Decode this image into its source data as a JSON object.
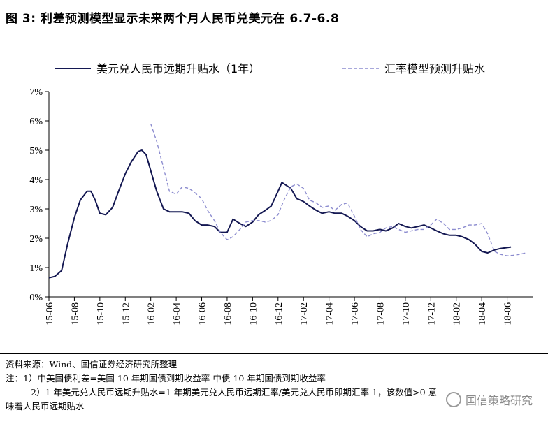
{
  "figure_title": "图 3: 利差预测模型显示未来两个月人民币兑美元在 6.7-6.8",
  "notes": [
    "资料来源：Wind、国信证券经济研究所整理",
    "注：1）中美国债利差=美国 10 年期国债到期收益率-中债 10 年期国债到期收益率",
    "2）1 年美元兑人民币远期升贴水=1 年期美元兑人民币远期汇率/美元兑人民币即期汇率-1，该数值>0 意",
    "味着人民币远期贴水"
  ],
  "watermark": "国信策略研究",
  "colors": {
    "series1": "#141852",
    "series2": "#8c8ccf",
    "axis": "#000000"
  },
  "chart_data": {
    "type": "line",
    "title": "",
    "xlabel": "",
    "ylabel": "",
    "ylim": [
      0,
      7
    ],
    "yticks": [
      "0%",
      "1%",
      "2%",
      "3%",
      "4%",
      "5%",
      "6%",
      "7%"
    ],
    "xlim": [
      "2015-06",
      "2018-08"
    ],
    "xticks": [
      "15-06",
      "15-08",
      "15-10",
      "15-12",
      "16-02",
      "16-04",
      "16-06",
      "16-08",
      "16-10",
      "16-12",
      "17-02",
      "17-04",
      "17-06",
      "17-08",
      "17-10",
      "17-12",
      "18-02",
      "18-04",
      "18-06"
    ],
    "grid": false,
    "legend_position": "top",
    "series": [
      {
        "name": "美元兑人民币远期升贴水（1年）",
        "style": "solid",
        "points": [
          [
            "2015-06-01",
            0.65
          ],
          [
            "2015-06-15",
            0.7
          ],
          [
            "2015-07-01",
            0.9
          ],
          [
            "2015-07-15",
            1.8
          ],
          [
            "2015-08-01",
            2.7
          ],
          [
            "2015-08-15",
            3.3
          ],
          [
            "2015-09-01",
            3.6
          ],
          [
            "2015-09-10",
            3.6
          ],
          [
            "2015-09-20",
            3.3
          ],
          [
            "2015-10-01",
            2.85
          ],
          [
            "2015-10-15",
            2.8
          ],
          [
            "2015-11-01",
            3.05
          ],
          [
            "2015-11-15",
            3.6
          ],
          [
            "2015-12-01",
            4.2
          ],
          [
            "2015-12-15",
            4.6
          ],
          [
            "2016-01-01",
            4.95
          ],
          [
            "2016-01-10",
            5.0
          ],
          [
            "2016-01-20",
            4.85
          ],
          [
            "2016-02-01",
            4.3
          ],
          [
            "2016-02-15",
            3.6
          ],
          [
            "2016-03-01",
            3.0
          ],
          [
            "2016-03-15",
            2.9
          ],
          [
            "2016-04-01",
            2.9
          ],
          [
            "2016-04-15",
            2.9
          ],
          [
            "2016-05-01",
            2.85
          ],
          [
            "2016-05-15",
            2.6
          ],
          [
            "2016-06-01",
            2.45
          ],
          [
            "2016-06-15",
            2.45
          ],
          [
            "2016-07-01",
            2.4
          ],
          [
            "2016-07-15",
            2.2
          ],
          [
            "2016-08-01",
            2.2
          ],
          [
            "2016-08-15",
            2.65
          ],
          [
            "2016-09-01",
            2.5
          ],
          [
            "2016-09-15",
            2.4
          ],
          [
            "2016-10-01",
            2.55
          ],
          [
            "2016-10-15",
            2.8
          ],
          [
            "2016-11-01",
            2.95
          ],
          [
            "2016-11-15",
            3.1
          ],
          [
            "2016-12-01",
            3.6
          ],
          [
            "2016-12-10",
            3.9
          ],
          [
            "2017-01-01",
            3.7
          ],
          [
            "2017-01-15",
            3.35
          ],
          [
            "2017-02-01",
            3.25
          ],
          [
            "2017-02-15",
            3.1
          ],
          [
            "2017-03-01",
            2.95
          ],
          [
            "2017-03-15",
            2.85
          ],
          [
            "2017-04-01",
            2.9
          ],
          [
            "2017-04-15",
            2.85
          ],
          [
            "2017-05-01",
            2.85
          ],
          [
            "2017-05-15",
            2.75
          ],
          [
            "2017-06-01",
            2.6
          ],
          [
            "2017-06-15",
            2.4
          ],
          [
            "2017-07-01",
            2.25
          ],
          [
            "2017-07-15",
            2.25
          ],
          [
            "2017-08-01",
            2.3
          ],
          [
            "2017-08-15",
            2.25
          ],
          [
            "2017-09-01",
            2.35
          ],
          [
            "2017-09-15",
            2.5
          ],
          [
            "2017-10-01",
            2.4
          ],
          [
            "2017-10-15",
            2.35
          ],
          [
            "2017-11-01",
            2.4
          ],
          [
            "2017-11-15",
            2.45
          ],
          [
            "2017-12-01",
            2.35
          ],
          [
            "2017-12-15",
            2.25
          ],
          [
            "2018-01-01",
            2.15
          ],
          [
            "2018-01-15",
            2.1
          ],
          [
            "2018-02-01",
            2.1
          ],
          [
            "2018-02-15",
            2.05
          ],
          [
            "2018-03-01",
            1.95
          ],
          [
            "2018-03-15",
            1.8
          ],
          [
            "2018-04-01",
            1.55
          ],
          [
            "2018-04-15",
            1.5
          ],
          [
            "2018-05-01",
            1.6
          ],
          [
            "2018-05-15",
            1.65
          ],
          [
            "2018-06-01",
            1.68
          ],
          [
            "2018-06-10",
            1.7
          ]
        ]
      },
      {
        "name": "汇率模型预测升贴水",
        "style": "dashed",
        "points": [
          [
            "2016-02-01",
            5.9
          ],
          [
            "2016-02-15",
            5.3
          ],
          [
            "2016-03-01",
            4.4
          ],
          [
            "2016-03-15",
            3.6
          ],
          [
            "2016-04-01",
            3.5
          ],
          [
            "2016-04-15",
            3.75
          ],
          [
            "2016-05-01",
            3.7
          ],
          [
            "2016-05-15",
            3.55
          ],
          [
            "2016-06-01",
            3.35
          ],
          [
            "2016-06-15",
            2.95
          ],
          [
            "2016-07-01",
            2.6
          ],
          [
            "2016-07-15",
            2.2
          ],
          [
            "2016-08-01",
            1.95
          ],
          [
            "2016-08-15",
            2.05
          ],
          [
            "2016-09-01",
            2.3
          ],
          [
            "2016-09-15",
            2.55
          ],
          [
            "2016-10-01",
            2.6
          ],
          [
            "2016-10-15",
            2.6
          ],
          [
            "2016-11-01",
            2.55
          ],
          [
            "2016-11-15",
            2.6
          ],
          [
            "2016-12-01",
            2.8
          ],
          [
            "2016-12-15",
            3.3
          ],
          [
            "2017-01-01",
            3.75
          ],
          [
            "2017-01-15",
            3.85
          ],
          [
            "2017-02-01",
            3.7
          ],
          [
            "2017-02-15",
            3.3
          ],
          [
            "2017-03-01",
            3.2
          ],
          [
            "2017-03-15",
            3.05
          ],
          [
            "2017-04-01",
            3.1
          ],
          [
            "2017-04-15",
            2.95
          ],
          [
            "2017-05-01",
            3.15
          ],
          [
            "2017-05-15",
            3.2
          ],
          [
            "2017-06-01",
            2.75
          ],
          [
            "2017-06-15",
            2.3
          ],
          [
            "2017-07-01",
            2.05
          ],
          [
            "2017-07-15",
            2.15
          ],
          [
            "2017-08-01",
            2.2
          ],
          [
            "2017-08-15",
            2.35
          ],
          [
            "2017-09-01",
            2.4
          ],
          [
            "2017-09-15",
            2.3
          ],
          [
            "2017-10-01",
            2.2
          ],
          [
            "2017-10-15",
            2.25
          ],
          [
            "2017-11-01",
            2.3
          ],
          [
            "2017-11-15",
            2.3
          ],
          [
            "2017-12-01",
            2.45
          ],
          [
            "2017-12-15",
            2.65
          ],
          [
            "2018-01-01",
            2.5
          ],
          [
            "2018-01-15",
            2.3
          ],
          [
            "2018-02-01",
            2.3
          ],
          [
            "2018-02-15",
            2.35
          ],
          [
            "2018-03-01",
            2.45
          ],
          [
            "2018-03-15",
            2.45
          ],
          [
            "2018-04-01",
            2.5
          ],
          [
            "2018-04-15",
            2.15
          ],
          [
            "2018-05-01",
            1.55
          ],
          [
            "2018-05-15",
            1.45
          ],
          [
            "2018-06-01",
            1.4
          ],
          [
            "2018-06-15",
            1.42
          ],
          [
            "2018-07-01",
            1.45
          ],
          [
            "2018-07-15",
            1.5
          ]
        ]
      }
    ]
  }
}
